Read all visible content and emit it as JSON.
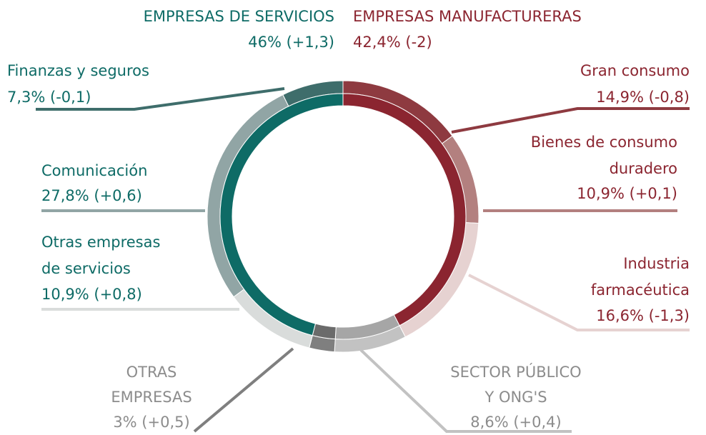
{
  "chart_data": {
    "type": "donut",
    "inner": {
      "categories": [
        "EMPRESAS MANUFACTURERAS",
        "SECTOR PÚBLICO\nY ONG'S",
        "OTRAS\nEMPRESAS",
        "EMPRESAS DE SERVICIOS"
      ],
      "values": [
        42.4,
        8.6,
        3,
        46
      ],
      "value_labels": [
        "42,4% (-2)",
        "8,6% (+0,4)",
        "3% (+0,5)",
        "46% (+1,3)"
      ],
      "colors": [
        "#8b2530",
        "#a6a6a6",
        "#6b6b6b",
        "#0e6b66"
      ],
      "label_colors": [
        "#8b2530",
        "#8c8c8c",
        "#8c8c8c",
        "#0e6b66"
      ]
    },
    "outer": {
      "categories": [
        "Gran consumo",
        "Bienes de consumo\nduradero",
        "Industria\nfarmacéutica",
        null,
        null,
        "Otras empresas\nde servicios",
        "Comunicación",
        "Finanzas y seguros"
      ],
      "values": [
        14.9,
        10.9,
        16.6,
        8.6,
        3,
        10.9,
        27.8,
        7.3
      ],
      "value_labels": [
        "14,9% (-0,8)",
        "10,9% (+0,1)",
        "16,6% (-1,3)",
        null,
        null,
        "10,9% (+0,8)",
        "27,8% (+0,6)",
        "7,3% (-0,1)"
      ],
      "colors": [
        "#8e3a40",
        "#b3807f",
        "#e6d2d1",
        "#c2c2c2",
        "#7f7f7f",
        "#d9dcdb",
        "#91a5a5",
        "#3e6d6b"
      ],
      "label_colors": [
        "#8b2530",
        "#8b2530",
        "#8b2530",
        null,
        null,
        "#0e6b66",
        "#0e6b66",
        "#0e6b66"
      ]
    }
  }
}
